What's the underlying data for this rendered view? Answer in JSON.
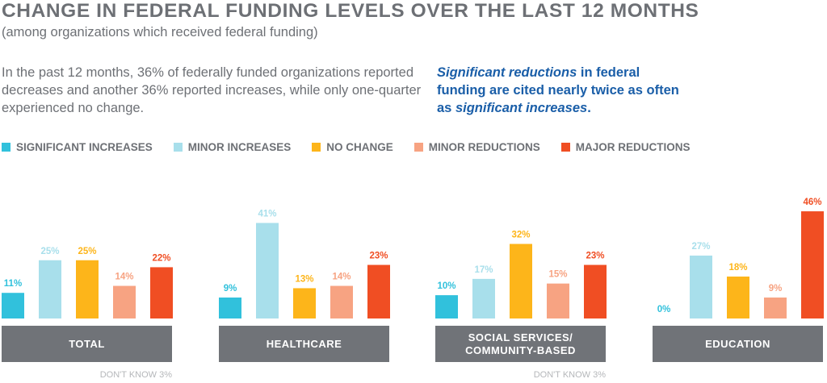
{
  "title": "CHANGE IN FEDERAL FUNDING LEVELS OVER THE LAST 12 MONTHS",
  "subtitle": "(among organizations which received federal funding)",
  "summary": "In the past 12 months, 36% of federally funded organizations reported decreases and another 36% reported increases, while only one-quarter experienced no change.",
  "callout": {
    "part1": "Significant reductions",
    "part2": " in federal funding are cited nearly twice as often as ",
    "part3": "significant increases",
    "part4": "."
  },
  "chart_data": {
    "type": "bar",
    "categories": [
      "TOTAL",
      "HEALTHCARE",
      "SOCIAL SERVICES/ COMMUNITY-BASED",
      "EDUCATION"
    ],
    "series": [
      {
        "name": "SIGNIFICANT INCREASES",
        "color": "#31c1dc",
        "values": [
          11,
          9,
          10,
          0
        ]
      },
      {
        "name": "MINOR INCREASES",
        "color": "#a8dfeb",
        "values": [
          25,
          41,
          17,
          27
        ]
      },
      {
        "name": "NO CHANGE",
        "color": "#fdb51a",
        "values": [
          25,
          13,
          32,
          18
        ]
      },
      {
        "name": "MINOR REDUCTIONS",
        "color": "#f7a382",
        "values": [
          14,
          14,
          15,
          9
        ]
      },
      {
        "name": "MAJOR REDUCTIONS",
        "color": "#f04e23",
        "values": [
          22,
          23,
          23,
          46
        ]
      }
    ],
    "value_suffix": "%",
    "legend": "top-left",
    "grid": false,
    "footnotes": [
      "DON'T KNOW 3%",
      "",
      "DON'T KNOW 3%",
      ""
    ],
    "category_box_color": "#707378"
  }
}
